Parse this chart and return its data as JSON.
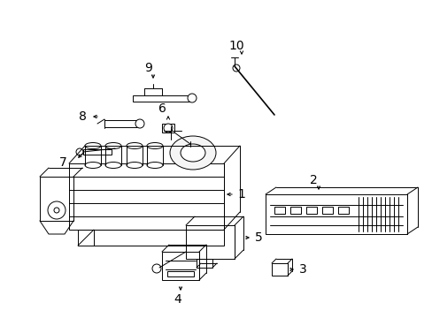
{
  "background": "#ffffff",
  "fig_width": 4.89,
  "fig_height": 3.6,
  "dpi": 100,
  "line_color": "#000000",
  "label_fontsize": 10,
  "lw": 0.7
}
